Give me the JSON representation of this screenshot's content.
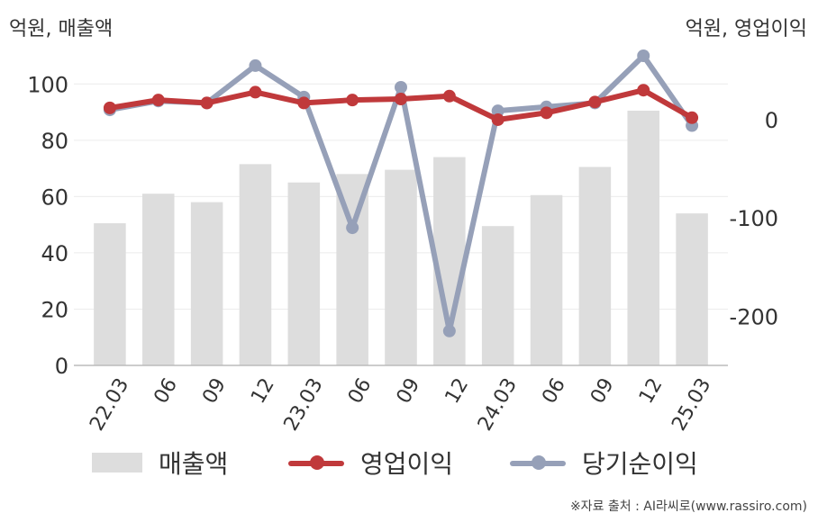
{
  "units": {
    "left": "억원, 매출액",
    "right": "억원, 영업이익"
  },
  "source": "※자료 출처 : AI라씨로(www.rassiro.com)",
  "legend": {
    "bar": "매출액",
    "line1": "영업이익",
    "line2": "당기순이익"
  },
  "colors": {
    "bar": "#dddddd",
    "operating": "#c0393b",
    "net": "#96a0b8"
  },
  "chart_data": {
    "type": "bar+line",
    "categories": [
      "22.03",
      "06",
      "09",
      "12",
      "23.03",
      "06",
      "09",
      "12",
      "24.03",
      "06",
      "09",
      "12",
      "25.03"
    ],
    "y_left": {
      "ticks": [
        0,
        20,
        40,
        60,
        80,
        100
      ],
      "range": [
        0,
        110
      ]
    },
    "y_right": {
      "ticks": [
        0,
        -100,
        -200
      ],
      "range": [
        -250,
        65
      ]
    },
    "grid": true,
    "legend_position": "bottom",
    "series": [
      {
        "name": "매출액",
        "axis": "left",
        "kind": "bar",
        "values": [
          50.5,
          61,
          58,
          71.5,
          65,
          68,
          69.5,
          74,
          49.5,
          60.5,
          70.5,
          90.5,
          54
        ]
      },
      {
        "name": "영업이익",
        "axis": "right",
        "kind": "line",
        "values": [
          12,
          20,
          17,
          28,
          17,
          20,
          21,
          24,
          0,
          7,
          18,
          30,
          2
        ]
      },
      {
        "name": "당기순이익",
        "axis": "right",
        "kind": "line",
        "values": [
          10,
          19,
          17,
          55,
          23,
          -110,
          33,
          -215,
          9,
          13,
          17,
          65,
          -6
        ]
      }
    ]
  }
}
